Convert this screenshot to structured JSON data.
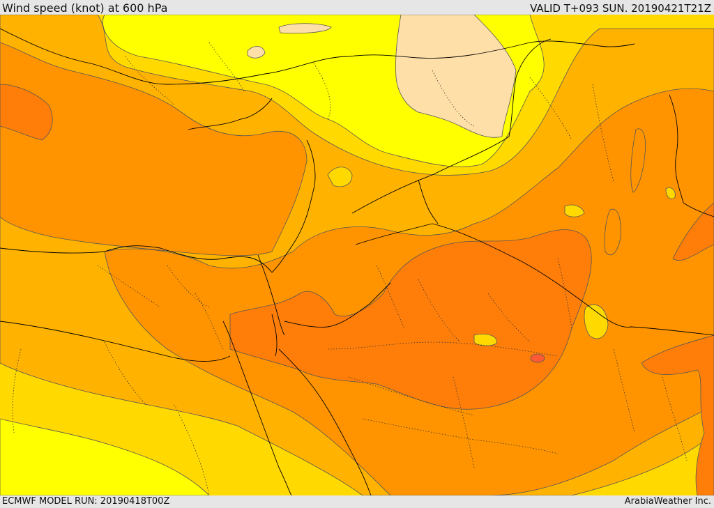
{
  "header": {
    "title": "Wind speed (knot) at 600 hPa",
    "valid": "VALID T+093 SUN. 20190421T21Z"
  },
  "footer": {
    "model_run": "ECMWF MODEL RUN: 20190418T00Z",
    "credit": "ArabiaWeather Inc."
  },
  "colors": {
    "band_lightest": "#ffdfa8",
    "band_1": "#ffff00",
    "band_2": "#ffd900",
    "band_3": "#ffb300",
    "band_4": "#ff9400",
    "band_5": "#ff7e0a",
    "band_6": "#ff5a33",
    "contour": "#555555",
    "border": "#000000",
    "background": "#e6e6e6"
  }
}
